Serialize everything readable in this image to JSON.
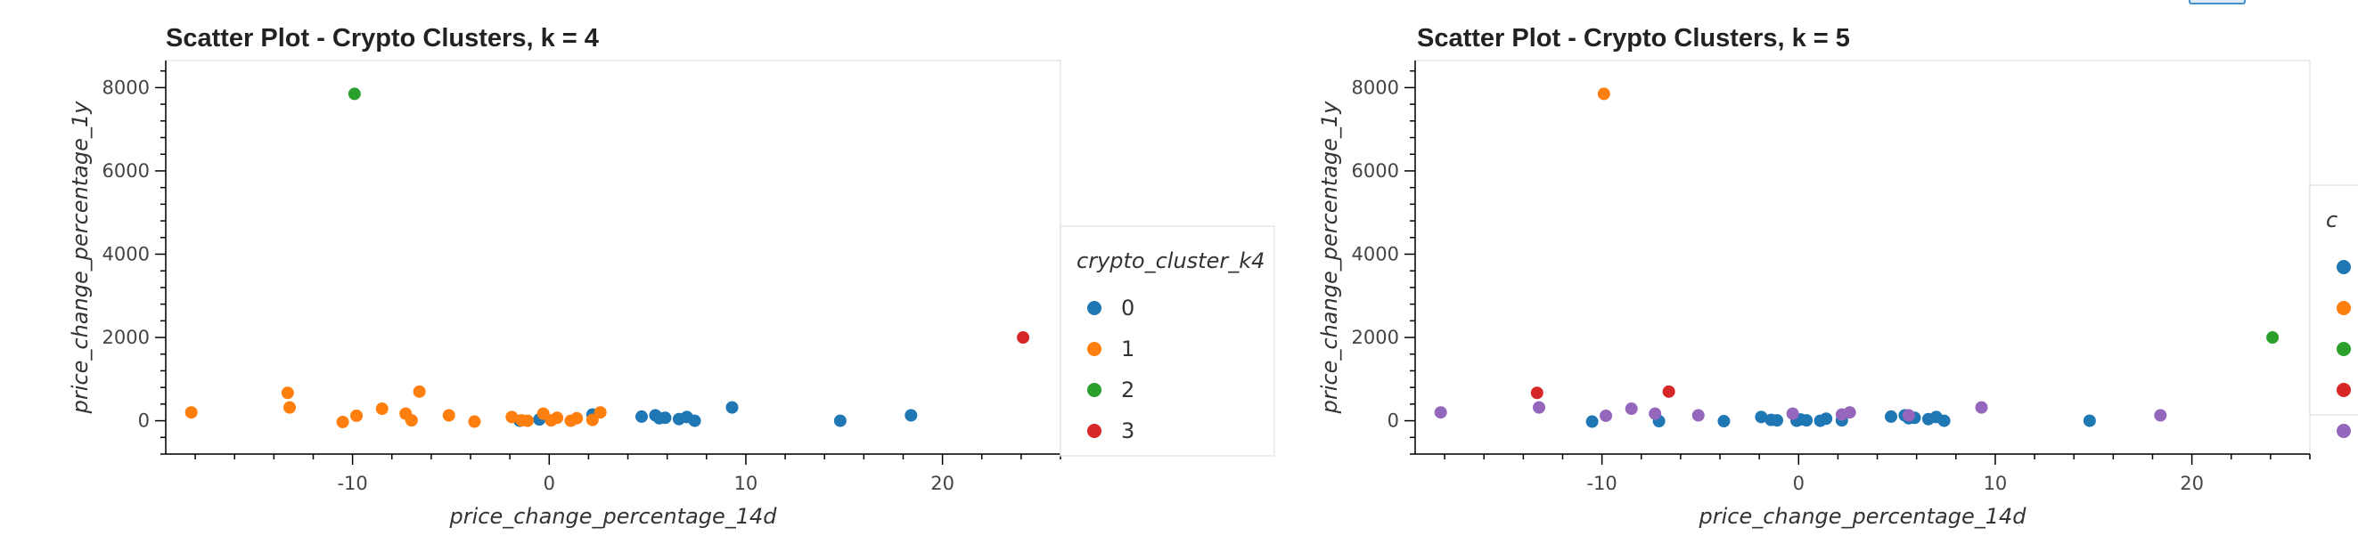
{
  "chart_data": [
    {
      "type": "scatter",
      "title": "Scatter Plot - Crypto Clusters, k = 4",
      "xlabel": "price_change_percentage_14d",
      "ylabel": "price_change_percentage_1y",
      "xlim": [
        -19.5,
        26
      ],
      "ylim": [
        -800,
        8650
      ],
      "xticks": [
        -10,
        0,
        10,
        20
      ],
      "yticks": [
        0,
        2000,
        4000,
        6000,
        8000
      ],
      "grid": false,
      "legend_title": "crypto_cluster_k4",
      "legend_position": "right",
      "series": [
        {
          "name": "0",
          "color": "#1f77b4",
          "points": [
            [
              -1.5,
              0
            ],
            [
              -0.5,
              30
            ],
            [
              2.2,
              150
            ],
            [
              4.7,
              100
            ],
            [
              5.4,
              130
            ],
            [
              5.6,
              60
            ],
            [
              5.9,
              70
            ],
            [
              6.6,
              40
            ],
            [
              7.0,
              90
            ],
            [
              7.4,
              0
            ],
            [
              9.3,
              320
            ],
            [
              14.8,
              0
            ],
            [
              18.4,
              130
            ]
          ]
        },
        {
          "name": "1",
          "color": "#ff7f0e",
          "points": [
            [
              -18.2,
              200
            ],
            [
              -13.3,
              670
            ],
            [
              -13.2,
              320
            ],
            [
              -10.5,
              -30
            ],
            [
              -9.8,
              120
            ],
            [
              -8.5,
              290
            ],
            [
              -7.3,
              170
            ],
            [
              -7.0,
              10
            ],
            [
              -6.6,
              700
            ],
            [
              -5.1,
              130
            ],
            [
              -3.8,
              -20
            ],
            [
              -1.9,
              90
            ],
            [
              -1.4,
              10
            ],
            [
              -1.1,
              0
            ],
            [
              -0.3,
              170
            ],
            [
              0.1,
              10
            ],
            [
              0.4,
              70
            ],
            [
              1.1,
              0
            ],
            [
              1.4,
              60
            ],
            [
              2.2,
              20
            ],
            [
              2.6,
              200
            ]
          ]
        },
        {
          "name": "2",
          "color": "#2ca02c",
          "points": [
            [
              -9.9,
              7850
            ]
          ]
        },
        {
          "name": "3",
          "color": "#d62728",
          "points": [
            [
              24.1,
              2000
            ]
          ]
        }
      ]
    },
    {
      "type": "scatter",
      "title": "Scatter Plot - Crypto Clusters, k = 5",
      "xlabel": "price_change_percentage_14d",
      "ylabel": "price_change_percentage_1y",
      "xlim": [
        -19.5,
        26
      ],
      "ylim": [
        -800,
        8650
      ],
      "xticks": [
        -10,
        0,
        10,
        20
      ],
      "yticks": [
        0,
        2000,
        4000,
        6000,
        8000
      ],
      "grid": false,
      "legend_title": "c",
      "legend_position": "right (partially cut off)",
      "series": [
        {
          "name": "",
          "color": "#1f77b4",
          "points": [
            [
              -10.5,
              -20
            ],
            [
              -7.1,
              -10
            ],
            [
              -3.8,
              -10
            ],
            [
              -1.9,
              90
            ],
            [
              -1.4,
              20
            ],
            [
              -1.1,
              10
            ],
            [
              -0.1,
              0
            ],
            [
              0.1,
              30
            ],
            [
              0.4,
              10
            ],
            [
              1.1,
              0
            ],
            [
              1.4,
              50
            ],
            [
              2.2,
              10
            ],
            [
              4.7,
              100
            ],
            [
              5.4,
              130
            ],
            [
              5.6,
              60
            ],
            [
              5.9,
              70
            ],
            [
              6.6,
              40
            ],
            [
              7.0,
              90
            ],
            [
              7.4,
              0
            ],
            [
              14.8,
              0
            ]
          ]
        },
        {
          "name": "",
          "color": "#ff7f0e",
          "points": [
            [
              -9.9,
              7850
            ]
          ]
        },
        {
          "name": "",
          "color": "#2ca02c",
          "points": [
            [
              24.1,
              2000
            ]
          ]
        },
        {
          "name": "",
          "color": "#d62728",
          "points": [
            [
              -13.3,
              670
            ],
            [
              -6.6,
              700
            ]
          ]
        },
        {
          "name": "",
          "color": "#9467bd",
          "points": [
            [
              -18.2,
              200
            ],
            [
              -13.2,
              320
            ],
            [
              -9.8,
              120
            ],
            [
              -8.5,
              290
            ],
            [
              -7.3,
              170
            ],
            [
              -5.1,
              130
            ],
            [
              -0.3,
              170
            ],
            [
              2.2,
              150
            ],
            [
              2.6,
              200
            ],
            [
              5.6,
              130
            ],
            [
              9.3,
              320
            ],
            [
              18.4,
              130
            ]
          ]
        }
      ]
    }
  ]
}
